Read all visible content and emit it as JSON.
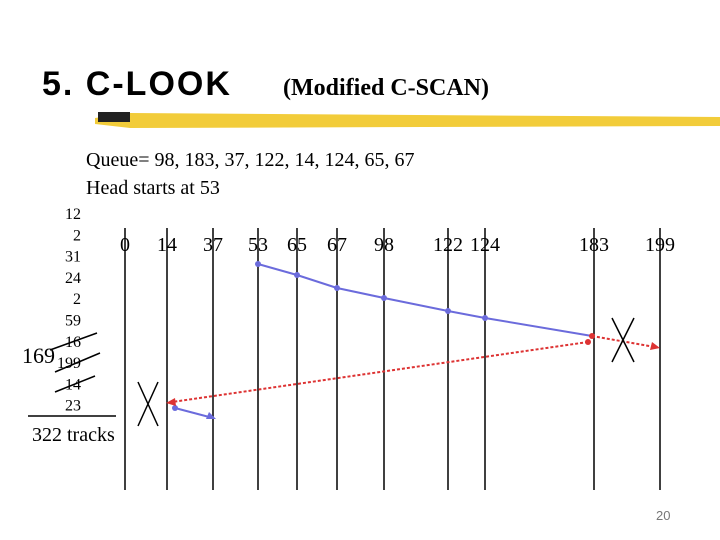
{
  "title": "5. C-LOOK",
  "subtitle": "(Modified C-SCAN)",
  "queue": "Queue= 98, 183, 37, 122, 14, 124, 65, 67",
  "head": "Head starts at 53",
  "tracks": [
    "0",
    "14",
    "37",
    "53",
    "65",
    "67",
    "98",
    "122",
    "124",
    "183",
    "199"
  ],
  "distances": [
    "12",
    "2",
    "31",
    "24",
    "2",
    "59",
    "16",
    "199",
    "14",
    "23"
  ],
  "crossed_total": "169",
  "total": "322 tracks",
  "page_number": "20"
}
